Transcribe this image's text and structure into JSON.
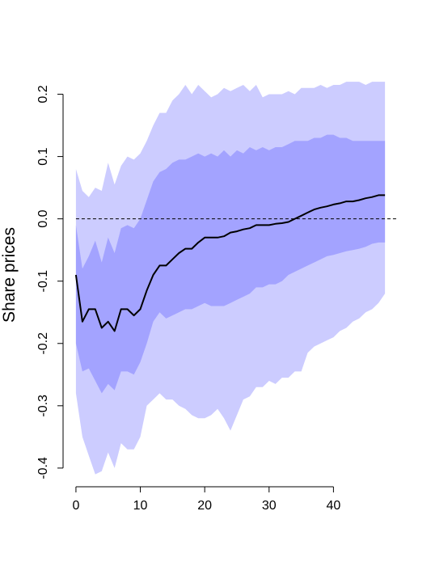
{
  "chart_data": {
    "type": "area",
    "ylabel": "Share prices",
    "xlim": [
      -2,
      50
    ],
    "ylim": [
      -0.43,
      0.25
    ],
    "x_ticks": [
      "0",
      "10",
      "20",
      "30",
      "40"
    ],
    "y_ticks": [
      "-0.4",
      "-0.3",
      "-0.2",
      "-0.1",
      "0.0",
      "0.1",
      "0.2"
    ],
    "zero_line": 0,
    "grid": false,
    "colors": {
      "outer_band": "#ccccff",
      "inner_band": "#a3a3ff",
      "median_line": "#000000",
      "zero_line": "#000000"
    },
    "x": [
      0,
      1,
      2,
      3,
      4,
      5,
      6,
      7,
      8,
      9,
      10,
      11,
      12,
      13,
      14,
      15,
      16,
      17,
      18,
      19,
      20,
      21,
      22,
      23,
      24,
      25,
      26,
      27,
      28,
      29,
      30,
      31,
      32,
      33,
      34,
      35,
      36,
      37,
      38,
      39,
      40,
      41,
      42,
      43,
      44,
      45,
      46,
      47,
      48
    ],
    "median": [
      -0.09,
      -0.165,
      -0.145,
      -0.145,
      -0.175,
      -0.165,
      -0.18,
      -0.145,
      -0.145,
      -0.155,
      -0.145,
      -0.115,
      -0.09,
      -0.075,
      -0.075,
      -0.065,
      -0.055,
      -0.048,
      -0.048,
      -0.038,
      -0.03,
      -0.03,
      -0.03,
      -0.028,
      -0.022,
      -0.02,
      -0.017,
      -0.015,
      -0.01,
      -0.01,
      -0.01,
      -0.008,
      -0.007,
      -0.005,
      0,
      0.005,
      0.01,
      0.015,
      0.018,
      0.02,
      0.023,
      0.025,
      0.028,
      0.028,
      0.03,
      0.033,
      0.035,
      0.038,
      0.038
    ],
    "inner_band": {
      "upper": [
        -0.01,
        -0.08,
        -0.06,
        -0.035,
        -0.07,
        -0.03,
        -0.055,
        -0.015,
        -0.01,
        -0.015,
        0.0,
        0.03,
        0.06,
        0.075,
        0.08,
        0.09,
        0.095,
        0.095,
        0.1,
        0.105,
        0.1,
        0.105,
        0.1,
        0.11,
        0.1,
        0.11,
        0.105,
        0.115,
        0.11,
        0.115,
        0.11,
        0.115,
        0.115,
        0.12,
        0.125,
        0.125,
        0.125,
        0.13,
        0.13,
        0.135,
        0.135,
        0.13,
        0.13,
        0.125,
        0.125,
        0.125,
        0.125,
        0.125,
        0.125
      ],
      "lower": [
        -0.2,
        -0.245,
        -0.24,
        -0.26,
        -0.28,
        -0.265,
        -0.275,
        -0.245,
        -0.245,
        -0.25,
        -0.23,
        -0.2,
        -0.165,
        -0.15,
        -0.16,
        -0.155,
        -0.15,
        -0.145,
        -0.145,
        -0.14,
        -0.135,
        -0.14,
        -0.14,
        -0.14,
        -0.135,
        -0.13,
        -0.125,
        -0.12,
        -0.11,
        -0.11,
        -0.105,
        -0.105,
        -0.1,
        -0.09,
        -0.085,
        -0.08,
        -0.075,
        -0.07,
        -0.065,
        -0.06,
        -0.058,
        -0.055,
        -0.052,
        -0.05,
        -0.048,
        -0.045,
        -0.04,
        -0.038,
        -0.038
      ]
    },
    "outer_band": {
      "upper": [
        0.08,
        0.045,
        0.035,
        0.05,
        0.045,
        0.09,
        0.055,
        0.085,
        0.1,
        0.095,
        0.105,
        0.125,
        0.15,
        0.17,
        0.17,
        0.19,
        0.2,
        0.215,
        0.2,
        0.215,
        0.205,
        0.195,
        0.2,
        0.21,
        0.205,
        0.21,
        0.215,
        0.205,
        0.215,
        0.195,
        0.2,
        0.2,
        0.2,
        0.205,
        0.2,
        0.21,
        0.21,
        0.21,
        0.215,
        0.21,
        0.215,
        0.215,
        0.22,
        0.22,
        0.22,
        0.215,
        0.22,
        0.22,
        0.22
      ],
      "lower": [
        -0.28,
        -0.35,
        -0.38,
        -0.41,
        -0.405,
        -0.375,
        -0.4,
        -0.36,
        -0.37,
        -0.37,
        -0.35,
        -0.3,
        -0.29,
        -0.28,
        -0.29,
        -0.29,
        -0.3,
        -0.305,
        -0.315,
        -0.32,
        -0.32,
        -0.315,
        -0.305,
        -0.32,
        -0.34,
        -0.315,
        -0.29,
        -0.285,
        -0.27,
        -0.27,
        -0.26,
        -0.265,
        -0.255,
        -0.255,
        -0.245,
        -0.245,
        -0.215,
        -0.205,
        -0.2,
        -0.195,
        -0.19,
        -0.18,
        -0.175,
        -0.165,
        -0.16,
        -0.15,
        -0.145,
        -0.135,
        -0.12
      ]
    }
  }
}
